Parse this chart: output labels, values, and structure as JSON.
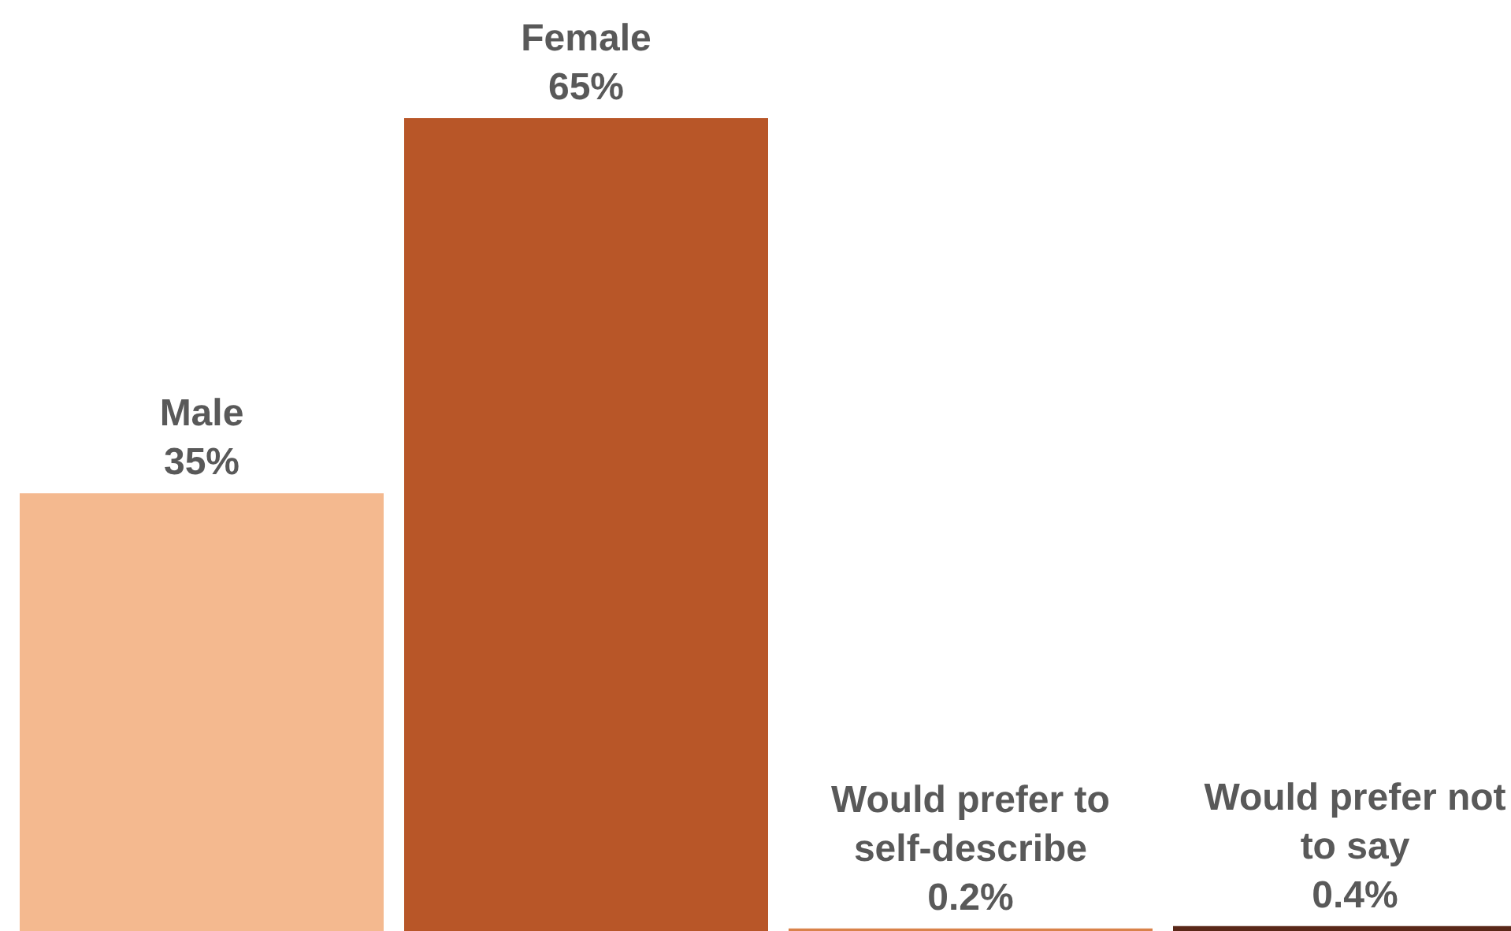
{
  "chart_data": {
    "type": "bar",
    "categories": [
      "Male",
      "Female",
      "Would prefer to self-describe",
      "Would prefer not to say"
    ],
    "values": [
      35,
      65,
      0.2,
      0.4
    ],
    "colors": [
      "#f4b98f",
      "#b85628",
      "#d9824a",
      "#5a2818"
    ],
    "value_labels": [
      "35%",
      "65%",
      "0.2%",
      "0.4%"
    ],
    "tick_labels": false
  }
}
